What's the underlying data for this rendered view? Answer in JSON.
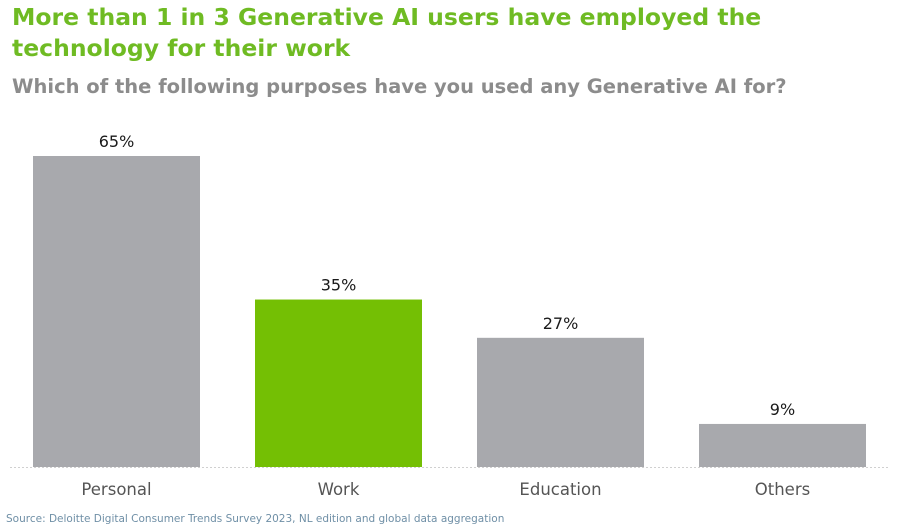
{
  "header": {
    "title": "More than 1 in 3 Generative AI users have employed the technology for their work",
    "subtitle": "Which of the following purposes have you used any Generative AI for?"
  },
  "footer": {
    "source": "Source: Deloitte Digital Consumer Trends Survey 2023, NL edition and global data aggregation"
  },
  "colors": {
    "title": "#6fbb23",
    "subtitle": "#8c8c8c",
    "bar_default": "#a8a9ad",
    "bar_highlight": "#74bf04",
    "baseline": "#d0d0d0",
    "tick_text": "#555555",
    "value_text": "#1a1a1a"
  },
  "chart_data": {
    "type": "bar",
    "title": "",
    "xlabel": "",
    "ylabel": "",
    "categories": [
      "Personal",
      "Work",
      "Education",
      "Others"
    ],
    "values": [
      65,
      35,
      27,
      9
    ],
    "value_labels": [
      "65%",
      "35%",
      "27%",
      "9%"
    ],
    "highlight_category": "Work",
    "ylim": [
      0,
      65
    ],
    "grid": false,
    "legend": "none"
  }
}
